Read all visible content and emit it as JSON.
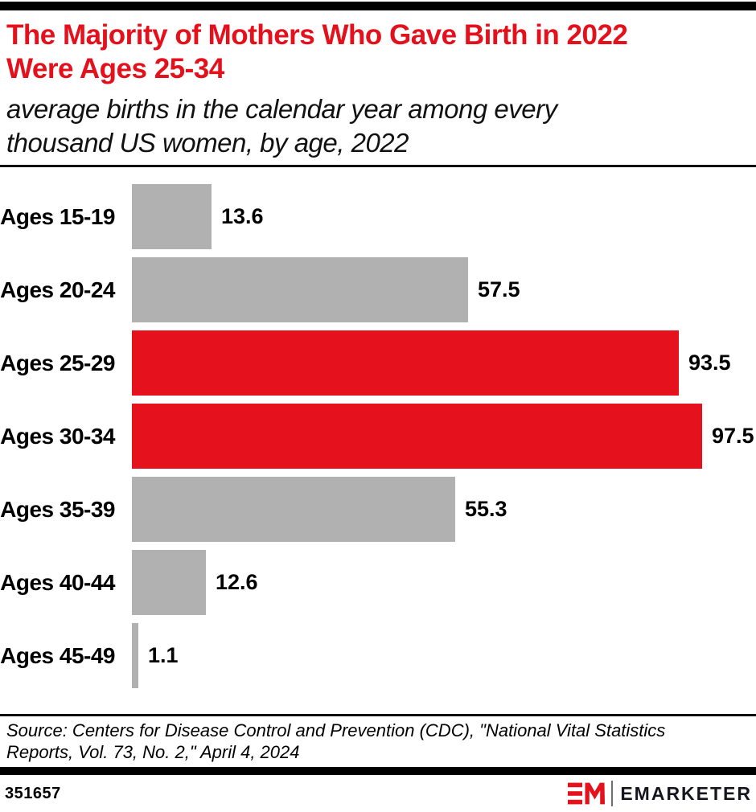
{
  "colors": {
    "red": "#E5121D",
    "title_red": "#E4111C",
    "bar_gray": "#B1B1B1",
    "black": "#000000",
    "wordmark_dark": "#16161E"
  },
  "header": {
    "title_lines": [
      "The Majority of Mothers Who Gave Birth in 2022",
      "Were Ages 25-34"
    ],
    "subtitle_lines": [
      "average births in the calendar year among every",
      "thousand US women, by age, 2022"
    ]
  },
  "chart_data": {
    "type": "bar",
    "orientation": "horizontal",
    "title": "The Majority of Mothers Who Gave Birth in 2022 Were Ages 25-34",
    "subtitle": "average births in the calendar year among every thousand US women, by age, 2022",
    "categories": [
      "Ages 15-19",
      "Ages 20-24",
      "Ages 25-29",
      "Ages 30-34",
      "Ages 35-39",
      "Ages 40-44",
      "Ages 45-49"
    ],
    "values": [
      13.6,
      57.5,
      93.5,
      97.5,
      55.3,
      12.6,
      1.1
    ],
    "value_labels": [
      "13.6",
      "57.5",
      "93.5",
      "97.5",
      "55.3",
      "12.6",
      "1.1"
    ],
    "highlighted_categories": [
      "Ages 25-29",
      "Ages 30-34"
    ],
    "bar_color_default": "#B1B1B1",
    "bar_color_highlight": "#E5121D",
    "xlim": [
      0,
      100
    ],
    "grid": false,
    "legend": false,
    "data_labels": "outside-end"
  },
  "source": {
    "lines": [
      "Source: Centers for Disease Control and Prevention (CDC), \"National Vital Statistics",
      "Reports, Vol. 73, No. 2,\" April 4, 2024"
    ]
  },
  "footer": {
    "chart_id": "351657",
    "logo": {
      "monogram": "EM",
      "wordmark": "EMARKETER"
    }
  }
}
